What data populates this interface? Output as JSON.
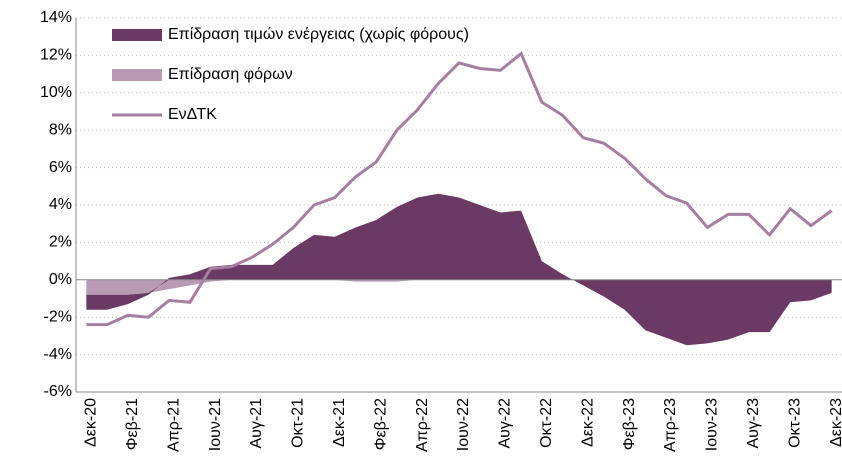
{
  "chart_data": {
    "type": "area-line",
    "categories": [
      "Δεκ-20",
      null,
      "Φεβ-21",
      null,
      "Απρ-21",
      null,
      "Ιουν-21",
      null,
      "Αυγ-21",
      null,
      "Οκτ-21",
      null,
      "Δεκ-21",
      null,
      "Φεβ-22",
      null,
      "Απρ-22",
      null,
      "Ιουν-22",
      null,
      "Αυγ-22",
      null,
      "Οκτ-22",
      null,
      "Δεκ-22",
      null,
      "Φεβ-23",
      null,
      "Απρ-23",
      null,
      "Ιουν-23",
      null,
      "Αυγ-23",
      null,
      "Οκτ-23",
      null,
      "Δεκ-23"
    ],
    "series": [
      {
        "name": "Επίδραση τιμών ενέργειας (χωρίς φόρους)",
        "kind": "area",
        "color": "#6b3a64",
        "values": [
          -0.8,
          -0.8,
          -0.5,
          -0.1,
          0.1,
          0.3,
          0.7,
          0.8,
          0.8,
          0.8,
          1.7,
          2.4,
          2.3,
          2.8,
          3.2,
          3.9,
          4.4,
          4.6,
          4.4,
          4.0,
          3.6,
          3.7,
          1.0,
          0.3,
          -0.3,
          -0.9,
          -1.6,
          -2.7,
          -3.1,
          -3.5,
          -3.4,
          -3.2,
          -2.8,
          -2.8,
          -1.2,
          -1.1,
          -0.7
        ]
      },
      {
        "name": "Επίδραση φόρων",
        "kind": "area",
        "color": "#b99ab4",
        "values": [
          -0.8,
          -0.8,
          -0.8,
          -0.7,
          -0.5,
          -0.3,
          -0.1,
          0,
          0,
          0,
          0,
          0,
          0,
          -0.1,
          -0.1,
          -0.1,
          0,
          0,
          0,
          0,
          0,
          0,
          0,
          0,
          0,
          0,
          0,
          0,
          0,
          0,
          0,
          0,
          0,
          0,
          0,
          0,
          0
        ]
      },
      {
        "name": "ΕνΔΤΚ",
        "kind": "line",
        "color": "#a57ea0",
        "values": [
          -2.4,
          -2.4,
          -1.9,
          -2.0,
          -1.1,
          -1.2,
          0.6,
          0.7,
          1.2,
          1.9,
          2.8,
          4.0,
          4.4,
          5.5,
          6.3,
          8.0,
          9.1,
          10.5,
          11.6,
          11.3,
          11.2,
          12.1,
          9.5,
          8.8,
          7.6,
          7.3,
          6.5,
          5.4,
          4.5,
          4.1,
          2.8,
          3.5,
          3.5,
          2.4,
          3.8,
          2.9,
          3.7
        ]
      }
    ],
    "ylim": [
      -6,
      14
    ],
    "yticks": [
      {
        "value": -6,
        "label": "-6%"
      },
      {
        "value": -4,
        "label": "-4%"
      },
      {
        "value": -2,
        "label": "-2%"
      },
      {
        "value": 0,
        "label": "0%"
      },
      {
        "value": 2,
        "label": "2%"
      },
      {
        "value": 4,
        "label": "4%"
      },
      {
        "value": 6,
        "label": "6%"
      },
      {
        "value": 8,
        "label": "8%"
      },
      {
        "value": 10,
        "label": "10%"
      },
      {
        "value": 12,
        "label": "12%"
      },
      {
        "value": 14,
        "label": "14%"
      }
    ],
    "grid": true,
    "legend": "top-left"
  }
}
